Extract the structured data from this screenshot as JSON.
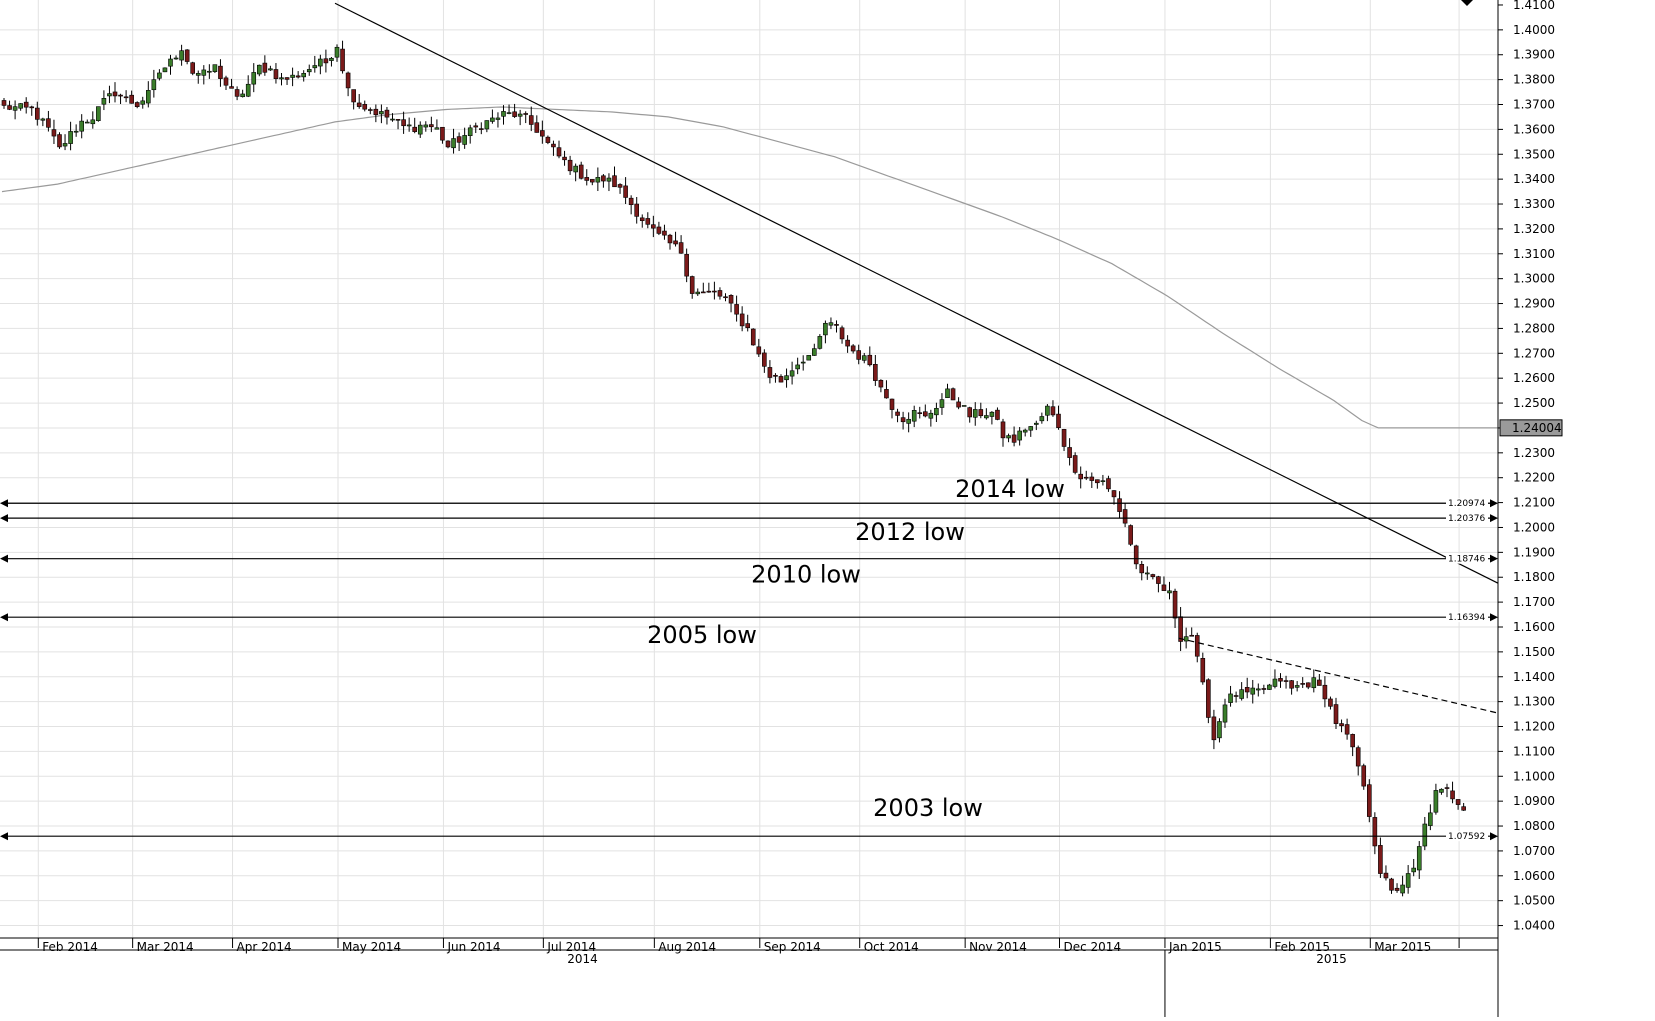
{
  "chart_data": {
    "type": "candlestick",
    "ylim": [
      1.035,
      1.412
    ],
    "y_ticks": [
      "1.4000",
      "1.3900",
      "1.3800",
      "1.3700",
      "1.3600",
      "1.3500",
      "1.3400",
      "1.3300",
      "1.3200",
      "1.3100",
      "1.3000",
      "1.2900",
      "1.2800",
      "1.2700",
      "1.2600",
      "1.2500",
      "1.2400",
      "1.2300",
      "1.2200",
      "1.2100",
      "1.2000",
      "1.1900",
      "1.1800",
      "1.1700",
      "1.1600",
      "1.1500",
      "1.1400",
      "1.1300",
      "1.1200",
      "1.1100",
      "1.1000",
      "1.0900",
      "1.0800",
      "1.0700",
      "1.0600",
      "1.0500",
      "1.0400"
    ],
    "y_top_tick": "1.4100",
    "month_ticks": [
      "Feb 2014",
      "Mar 2014",
      "Apr 2014",
      "May 2014",
      "Jun 2014",
      "Jul 2014",
      "Aug 2014",
      "Sep 2014",
      "Oct 2014",
      "Nov 2014",
      "Dec 2014",
      "Jan 2015",
      "Feb 2015",
      "Mar 2015"
    ],
    "year_labels": [
      "2014",
      "2015"
    ],
    "close_points": [
      [
        0,
        1.369
      ],
      [
        5,
        1.368
      ],
      [
        8,
        1.36
      ],
      [
        10,
        1.352
      ],
      [
        12,
        1.358
      ],
      [
        14,
        1.363
      ],
      [
        16,
        1.365
      ],
      [
        18,
        1.371
      ],
      [
        20,
        1.375
      ],
      [
        22,
        1.372
      ],
      [
        24,
        1.37
      ],
      [
        26,
        1.374
      ],
      [
        28,
        1.383
      ],
      [
        30,
        1.387
      ],
      [
        32,
        1.393
      ],
      [
        34,
        1.383
      ],
      [
        36,
        1.382
      ],
      [
        38,
        1.385
      ],
      [
        40,
        1.378
      ],
      [
        42,
        1.372
      ],
      [
        44,
        1.378
      ],
      [
        46,
        1.385
      ],
      [
        48,
        1.384
      ],
      [
        50,
        1.38
      ],
      [
        52,
        1.381
      ],
      [
        54,
        1.383
      ],
      [
        56,
        1.386
      ],
      [
        58,
        1.387
      ],
      [
        60,
        1.394
      ],
      [
        62,
        1.376
      ],
      [
        64,
        1.37
      ],
      [
        66,
        1.368
      ],
      [
        68,
        1.366
      ],
      [
        70,
        1.364
      ],
      [
        72,
        1.361
      ],
      [
        74,
        1.361
      ],
      [
        76,
        1.362
      ],
      [
        78,
        1.36
      ],
      [
        80,
        1.353
      ],
      [
        82,
        1.356
      ],
      [
        84,
        1.359
      ],
      [
        86,
        1.362
      ],
      [
        88,
        1.364
      ],
      [
        90,
        1.366
      ],
      [
        92,
        1.366
      ],
      [
        94,
        1.364
      ],
      [
        96,
        1.36
      ],
      [
        98,
        1.354
      ],
      [
        100,
        1.349
      ],
      [
        102,
        1.345
      ],
      [
        104,
        1.342
      ],
      [
        106,
        1.339
      ],
      [
        108,
        1.34
      ],
      [
        110,
        1.338
      ],
      [
        112,
        1.333
      ],
      [
        114,
        1.327
      ],
      [
        116,
        1.321
      ],
      [
        118,
        1.317
      ],
      [
        120,
        1.314
      ],
      [
        122,
        1.311
      ],
      [
        124,
        1.295
      ],
      [
        126,
        1.294
      ],
      [
        128,
        1.294
      ],
      [
        130,
        1.292
      ],
      [
        132,
        1.285
      ],
      [
        134,
        1.28
      ],
      [
        136,
        1.269
      ],
      [
        138,
        1.261
      ],
      [
        140,
        1.259
      ],
      [
        142,
        1.264
      ],
      [
        144,
        1.268
      ],
      [
        146,
        1.27
      ],
      [
        148,
        1.282
      ],
      [
        150,
        1.28
      ],
      [
        152,
        1.273
      ],
      [
        154,
        1.269
      ],
      [
        156,
        1.266
      ],
      [
        158,
        1.256
      ],
      [
        160,
        1.249
      ],
      [
        162,
        1.244
      ],
      [
        164,
        1.246
      ],
      [
        166,
        1.244
      ],
      [
        168,
        1.249
      ],
      [
        170,
        1.254
      ],
      [
        172,
        1.25
      ],
      [
        174,
        1.245
      ],
      [
        176,
        1.246
      ],
      [
        178,
        1.246
      ],
      [
        180,
        1.237
      ],
      [
        182,
        1.235
      ],
      [
        184,
        1.24
      ],
      [
        186,
        1.241
      ],
      [
        188,
        1.248
      ],
      [
        190,
        1.241
      ],
      [
        192,
        1.227
      ],
      [
        194,
        1.221
      ],
      [
        196,
        1.219
      ],
      [
        198,
        1.218
      ],
      [
        200,
        1.212
      ],
      [
        202,
        1.202
      ],
      [
        204,
        1.185
      ],
      [
        206,
        1.18
      ],
      [
        208,
        1.177
      ],
      [
        210,
        1.173
      ],
      [
        212,
        1.156
      ],
      [
        214,
        1.157
      ],
      [
        216,
        1.136
      ],
      [
        218,
        1.115
      ],
      [
        220,
        1.13
      ],
      [
        222,
        1.133
      ],
      [
        224,
        1.133
      ],
      [
        226,
        1.134
      ],
      [
        228,
        1.136
      ],
      [
        230,
        1.139
      ],
      [
        232,
        1.135
      ],
      [
        234,
        1.137
      ],
      [
        236,
        1.138
      ],
      [
        238,
        1.133
      ],
      [
        240,
        1.122
      ],
      [
        242,
        1.116
      ],
      [
        244,
        1.104
      ],
      [
        246,
        1.085
      ],
      [
        248,
        1.062
      ],
      [
        250,
        1.053
      ],
      [
        252,
        1.057
      ],
      [
        254,
        1.062
      ],
      [
        256,
        1.08
      ],
      [
        258,
        1.093
      ],
      [
        260,
        1.094
      ],
      [
        262,
        1.09
      ],
      [
        263,
        1.088
      ]
    ],
    "moving_average_points": [
      [
        0,
        1.335
      ],
      [
        10,
        1.338
      ],
      [
        20,
        1.343
      ],
      [
        30,
        1.348
      ],
      [
        40,
        1.353
      ],
      [
        50,
        1.358
      ],
      [
        60,
        1.363
      ],
      [
        70,
        1.366
      ],
      [
        80,
        1.368
      ],
      [
        90,
        1.369
      ],
      [
        100,
        1.368
      ],
      [
        110,
        1.367
      ],
      [
        120,
        1.365
      ],
      [
        130,
        1.361
      ],
      [
        140,
        1.355
      ],
      [
        150,
        1.349
      ],
      [
        160,
        1.341
      ],
      [
        170,
        1.333
      ],
      [
        180,
        1.325
      ],
      [
        190,
        1.316
      ],
      [
        200,
        1.306
      ],
      [
        210,
        1.293
      ],
      [
        220,
        1.278
      ],
      [
        230,
        1.264
      ],
      [
        240,
        1.251
      ],
      [
        245,
        1.243
      ],
      [
        248,
        1.24
      ],
      [
        263,
        1.24
      ]
    ],
    "ma_last_value": "1.24004",
    "trendline": {
      "start": [
        60,
        1.4107
      ],
      "end": [
        263,
        1.1776
      ]
    },
    "dashed_trendline": {
      "start": [
        212,
        1.1555
      ],
      "end": [
        263,
        1.1254
      ]
    },
    "levels": [
      {
        "value": 1.20974,
        "label": "1.20974",
        "annotation": "2014 low"
      },
      {
        "value": 1.20376,
        "label": "1.20376",
        "annotation": "2012 low"
      },
      {
        "value": 1.18746,
        "label": "1.18746",
        "annotation": "2010 low"
      },
      {
        "value": 1.16394,
        "label": "1.16394",
        "annotation": "2005 low"
      },
      {
        "value": 1.07592,
        "label": "1.07592",
        "annotation": "2003 low"
      }
    ],
    "grid": true
  },
  "colors": {
    "up_candle": "#3a7d2a",
    "down_candle": "#7a1a1a",
    "grid": "#e2e2e2",
    "moving_average": "#9a9a9a",
    "trendline": "#000000"
  }
}
